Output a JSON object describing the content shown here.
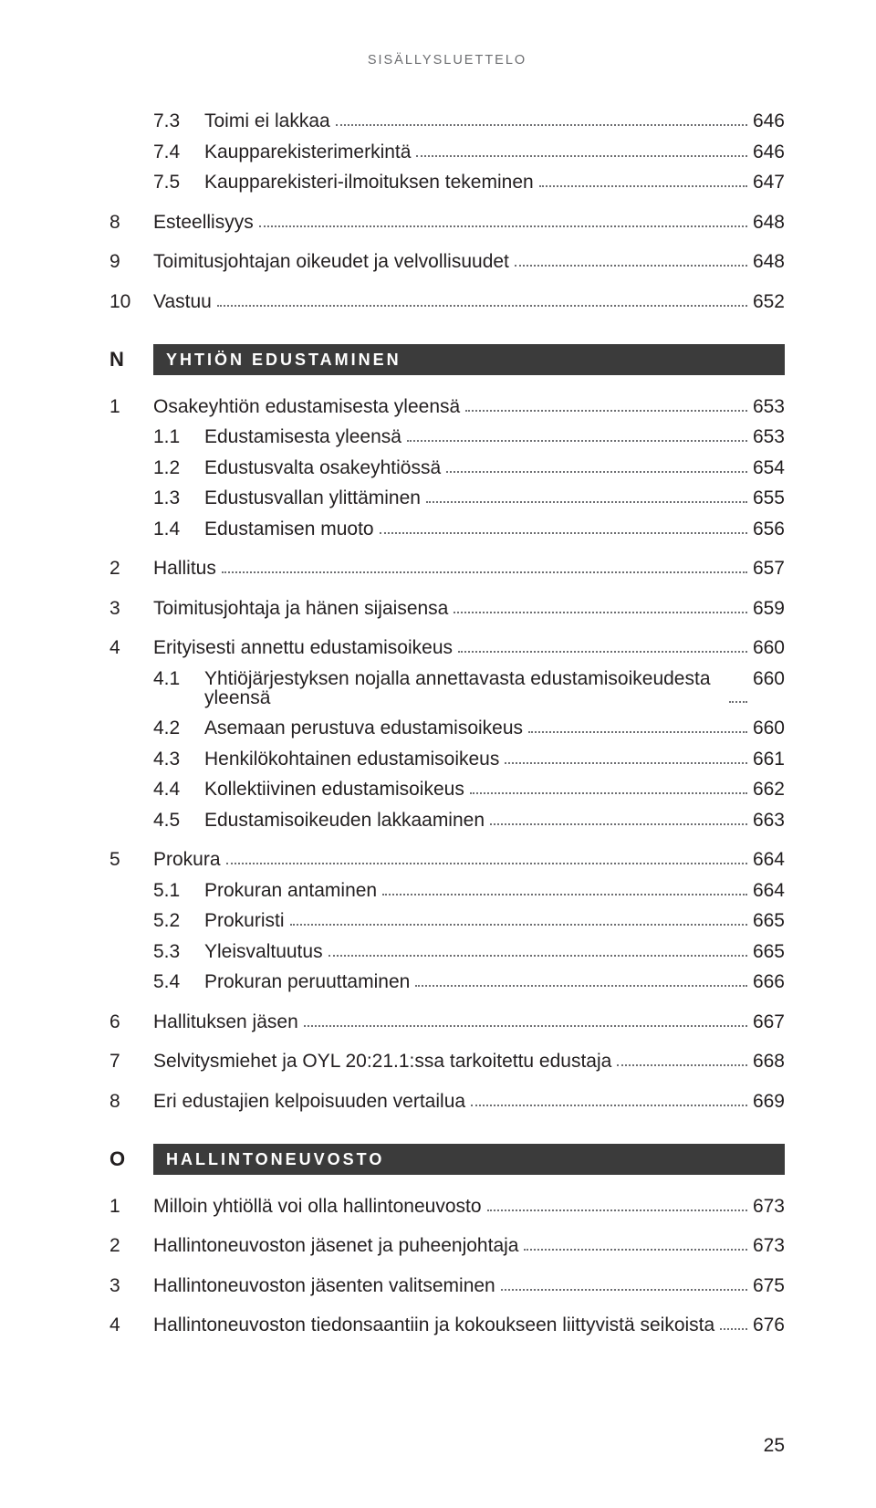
{
  "header": "SISÄLLYSLUETTELO",
  "footer_page": "25",
  "pre_items": [
    {
      "level": 2,
      "num": "7.3",
      "label": "Toimi ei lakkaa",
      "page": "646"
    },
    {
      "level": 2,
      "num": "7.4",
      "label": "Kaupparekisterimerkintä",
      "page": "646"
    },
    {
      "level": 2,
      "num": "7.5",
      "label": "Kaupparekisteri-ilmoituksen tekeminen",
      "page": "647"
    },
    {
      "level": 1,
      "num": "8",
      "label": "Esteellisyys",
      "page": "648",
      "gap_before": true
    },
    {
      "level": 1,
      "num": "9",
      "label": "Toimitusjohtajan oikeudet ja velvollisuudet",
      "page": "648",
      "gap_before": true
    },
    {
      "level": 1,
      "num": "10",
      "label": "Vastuu",
      "page": "652",
      "gap_before": true
    }
  ],
  "sections": [
    {
      "letter": "N",
      "title": "YHTIÖN EDUSTAMINEN",
      "items": [
        {
          "level": 1,
          "num": "1",
          "label": "Osakeyhtiön edustamisesta yleensä",
          "page": "653"
        },
        {
          "level": 2,
          "num": "1.1",
          "label": "Edustamisesta yleensä",
          "page": "653"
        },
        {
          "level": 2,
          "num": "1.2",
          "label": "Edustusvalta osakeyhtiössä",
          "page": "654"
        },
        {
          "level": 2,
          "num": "1.3",
          "label": "Edustusvallan ylittäminen",
          "page": "655"
        },
        {
          "level": 2,
          "num": "1.4",
          "label": "Edustamisen muoto",
          "page": "656"
        },
        {
          "level": 1,
          "num": "2",
          "label": "Hallitus",
          "page": "657",
          "gap_before": true
        },
        {
          "level": 1,
          "num": "3",
          "label": "Toimitusjohtaja ja hänen sijaisensa",
          "page": "659",
          "gap_before": true
        },
        {
          "level": 1,
          "num": "4",
          "label": "Erityisesti annettu edustamisoikeus",
          "page": "660",
          "gap_before": true
        },
        {
          "level": 2,
          "num": "4.1",
          "label": "Yhtiöjärjestyksen nojalla annettavasta edustamisoikeudesta yleensä",
          "page": "660"
        },
        {
          "level": 2,
          "num": "4.2",
          "label": "Asemaan perustuva edustamisoikeus",
          "page": "660"
        },
        {
          "level": 2,
          "num": "4.3",
          "label": "Henkilökohtainen edustamisoikeus",
          "page": "661"
        },
        {
          "level": 2,
          "num": "4.4",
          "label": "Kollektiivinen edustamisoikeus",
          "page": "662"
        },
        {
          "level": 2,
          "num": "4.5",
          "label": "Edustamisoikeuden lakkaaminen",
          "page": "663"
        },
        {
          "level": 1,
          "num": "5",
          "label": "Prokura",
          "page": "664",
          "gap_before": true
        },
        {
          "level": 2,
          "num": "5.1",
          "label": "Prokuran antaminen",
          "page": "664"
        },
        {
          "level": 2,
          "num": "5.2",
          "label": "Prokuristi",
          "page": "665"
        },
        {
          "level": 2,
          "num": "5.3",
          "label": "Yleisvaltuutus",
          "page": "665"
        },
        {
          "level": 2,
          "num": "5.4",
          "label": "Prokuran peruuttaminen",
          "page": "666"
        },
        {
          "level": 1,
          "num": "6",
          "label": "Hallituksen jäsen",
          "page": "667",
          "gap_before": true
        },
        {
          "level": 1,
          "num": "7",
          "label": "Selvitysmiehet ja OYL 20:21.1:ssa tarkoitettu edustaja",
          "page": "668",
          "gap_before": true
        },
        {
          "level": 1,
          "num": "8",
          "label": "Eri edustajien kelpoisuuden vertailua",
          "page": "669",
          "gap_before": true
        }
      ]
    },
    {
      "letter": "O",
      "title": "HALLINTONEUVOSTO",
      "items": [
        {
          "level": 1,
          "num": "1",
          "label": "Milloin yhtiöllä voi olla hallintoneuvosto",
          "page": "673"
        },
        {
          "level": 1,
          "num": "2",
          "label": "Hallintoneuvoston jäsenet ja puheenjohtaja",
          "page": "673",
          "gap_before": true
        },
        {
          "level": 1,
          "num": "3",
          "label": "Hallintoneuvoston jäsenten valitseminen",
          "page": "675",
          "gap_before": true
        },
        {
          "level": 1,
          "num": "4",
          "label": "Hallintoneuvoston tiedonsaantiin ja kokoukseen liittyvistä seikoista",
          "page": "676",
          "gap_before": true
        }
      ]
    }
  ]
}
